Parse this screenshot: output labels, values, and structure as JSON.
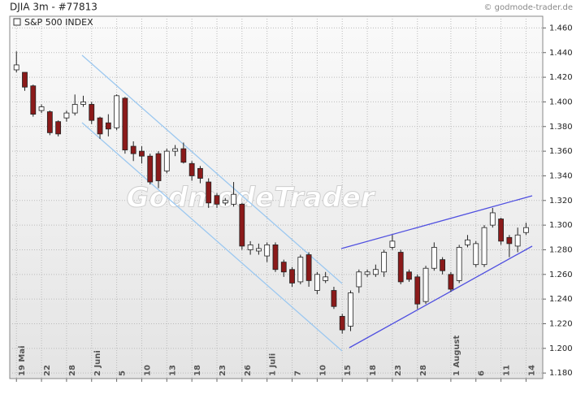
{
  "chart_data": {
    "type": "candlestick",
    "title": "DJIA 3m - #77813",
    "source": "© godmode-trader.de",
    "legend": "S&P 500 INDEX",
    "watermark": "GodmodeTrader",
    "up_color": "#ffffff",
    "down_color": "#8b1a1a",
    "open": [
      1.426,
      1.424,
      1.413,
      1.393,
      1.392,
      1.384,
      1.387,
      1.391,
      1.398,
      1.398,
      1.387,
      1.383,
      1.379,
      1.403,
      1.364,
      1.36,
      1.356,
      1.358,
      1.344,
      1.36,
      1.362,
      1.35,
      1.346,
      1.335,
      1.324,
      1.318,
      1.317,
      1.317,
      1.28,
      1.279,
      1.275,
      1.284,
      1.27,
      1.264,
      1.254,
      1.276,
      1.247,
      1.255,
      1.247,
      1.226,
      1.218,
      1.25,
      1.26,
      1.26,
      1.262,
      1.282,
      1.278,
      1.262,
      1.258,
      1.238,
      1.265,
      1.272,
      1.26,
      1.255,
      1.284,
      1.268,
      1.268,
      1.3,
      1.305,
      1.29,
      1.283,
      1.294
    ],
    "high": [
      1.441,
      1.424,
      1.414,
      1.398,
      1.393,
      1.385,
      1.393,
      1.406,
      1.405,
      1.4,
      1.388,
      1.39,
      1.406,
      1.404,
      1.368,
      1.364,
      1.358,
      1.36,
      1.362,
      1.365,
      1.367,
      1.352,
      1.348,
      1.338,
      1.326,
      1.322,
      1.335,
      1.318,
      1.287,
      1.285,
      1.286,
      1.286,
      1.272,
      1.266,
      1.276,
      1.278,
      1.262,
      1.262,
      1.25,
      1.228,
      1.247,
      1.264,
      1.264,
      1.268,
      1.28,
      1.292,
      1.28,
      1.264,
      1.26,
      1.267,
      1.286,
      1.274,
      1.262,
      1.284,
      1.292,
      1.287,
      1.3,
      1.314,
      1.306,
      1.292,
      1.298,
      1.302
    ],
    "low": [
      1.424,
      1.409,
      1.388,
      1.391,
      1.373,
      1.372,
      1.384,
      1.389,
      1.396,
      1.382,
      1.37,
      1.372,
      1.377,
      1.358,
      1.352,
      1.35,
      1.333,
      1.33,
      1.342,
      1.356,
      1.35,
      1.336,
      1.334,
      1.314,
      1.314,
      1.316,
      1.315,
      1.28,
      1.276,
      1.276,
      1.27,
      1.262,
      1.258,
      1.25,
      1.252,
      1.25,
      1.244,
      1.253,
      1.232,
      1.212,
      1.214,
      1.245,
      1.258,
      1.258,
      1.258,
      1.28,
      1.252,
      1.254,
      1.232,
      1.236,
      1.263,
      1.26,
      1.246,
      1.253,
      1.282,
      1.266,
      1.266,
      1.298,
      1.284,
      1.274,
      1.278,
      1.292
    ],
    "close": [
      1.43,
      1.412,
      1.39,
      1.396,
      1.375,
      1.374,
      1.391,
      1.398,
      1.4,
      1.385,
      1.374,
      1.378,
      1.405,
      1.361,
      1.358,
      1.356,
      1.335,
      1.336,
      1.36,
      1.362,
      1.351,
      1.34,
      1.338,
      1.318,
      1.317,
      1.32,
      1.325,
      1.283,
      1.284,
      1.281,
      1.284,
      1.264,
      1.262,
      1.253,
      1.274,
      1.255,
      1.26,
      1.258,
      1.234,
      1.215,
      1.245,
      1.262,
      1.262,
      1.264,
      1.278,
      1.287,
      1.254,
      1.256,
      1.236,
      1.265,
      1.282,
      1.263,
      1.248,
      1.282,
      1.288,
      1.285,
      1.298,
      1.31,
      1.287,
      1.285,
      1.292,
      1.298
    ],
    "xlim": [
      -0.8,
      63
    ],
    "xticks": [
      {
        "value": 0,
        "label": "19 Mai"
      },
      {
        "value": 3,
        "label": "22"
      },
      {
        "value": 6,
        "label": "28"
      },
      {
        "value": 9,
        "label": "2 Juni"
      },
      {
        "value": 12,
        "label": "5"
      },
      {
        "value": 15,
        "label": "10"
      },
      {
        "value": 18,
        "label": "13"
      },
      {
        "value": 21,
        "label": "18"
      },
      {
        "value": 24,
        "label": "23"
      },
      {
        "value": 27,
        "label": "26"
      },
      {
        "value": 30,
        "label": "1 Juli"
      },
      {
        "value": 33,
        "label": "7"
      },
      {
        "value": 36,
        "label": "10"
      },
      {
        "value": 39,
        "label": "15"
      },
      {
        "value": 42,
        "label": "18"
      },
      {
        "value": 45,
        "label": "23"
      },
      {
        "value": 48,
        "label": "28"
      },
      {
        "value": 52,
        "label": "1 August"
      },
      {
        "value": 55,
        "label": "6"
      },
      {
        "value": 58,
        "label": "11"
      },
      {
        "value": 61,
        "label": "14"
      }
    ],
    "ylim": [
      1.1755,
      1.4695
    ],
    "yticks": [
      {
        "value": 1.18,
        "label": "1.180"
      },
      {
        "value": 1.2,
        "label": "1.200"
      },
      {
        "value": 1.22,
        "label": "1.220"
      },
      {
        "value": 1.24,
        "label": "1.240"
      },
      {
        "value": 1.26,
        "label": "1.260"
      },
      {
        "value": 1.28,
        "label": "1.280"
      },
      {
        "value": 1.3,
        "label": "1.300"
      },
      {
        "value": 1.32,
        "label": "1.320"
      },
      {
        "value": 1.34,
        "label": "1.340"
      },
      {
        "value": 1.36,
        "label": "1.360"
      },
      {
        "value": 1.38,
        "label": "1.380"
      },
      {
        "value": 1.4,
        "label": "1.400"
      },
      {
        "value": 1.42,
        "label": "1.420"
      },
      {
        "value": 1.44,
        "label": "1.440"
      },
      {
        "value": 1.46,
        "label": "1.460"
      }
    ],
    "grid": true
  }
}
